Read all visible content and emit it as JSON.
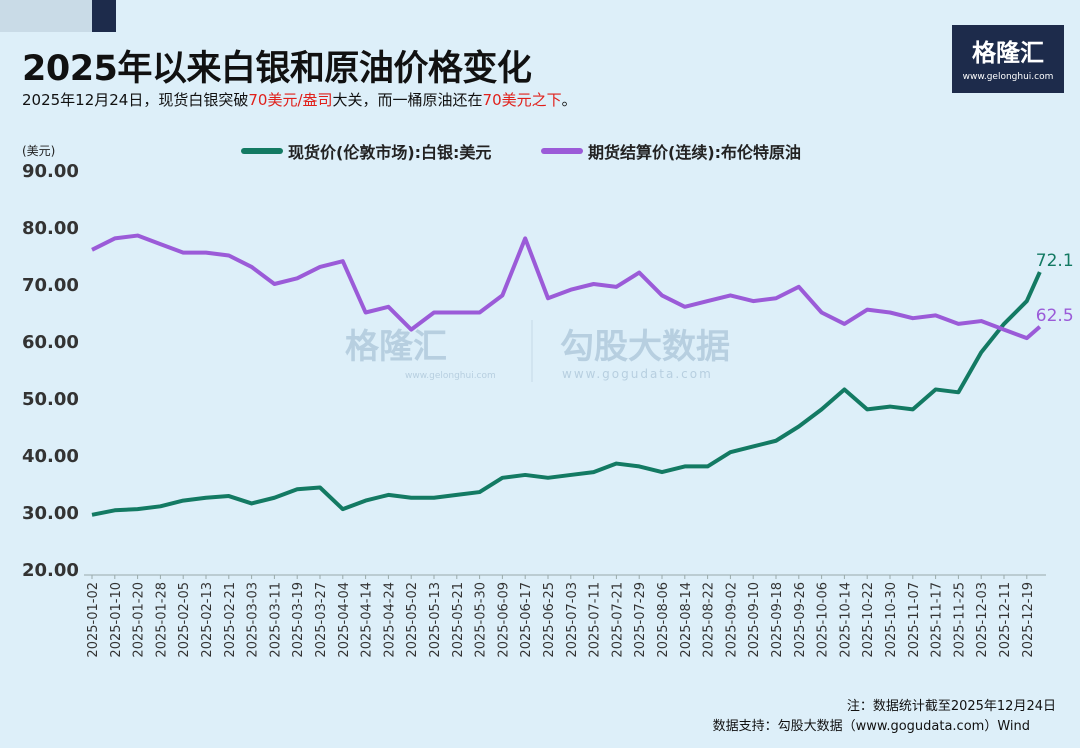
{
  "header": {
    "title": "2025年以来白银和原油价格变化",
    "subtitle_parts": [
      "2025年12月24日，现货白银突破",
      "70美元/盎司",
      "大关，而一桶原油还在",
      "70美元之下",
      "。"
    ]
  },
  "logo": {
    "name": "格隆汇",
    "url_text": "www.gelonghui.com"
  },
  "watermark": {
    "left": "格隆汇",
    "left_url": "www.gelonghui.com",
    "right": "勾股大数据",
    "right_url": "www.gogudata.com"
  },
  "footer": {
    "note": "注：数据统计截至2025年12月24日",
    "source": "数据支持：勾股大数据（www.gogudata.com）Wind"
  },
  "colors": {
    "silver": "#137a63",
    "oil": "#9b5bd8",
    "background": "#ddeff9",
    "highlight": "#e0201b"
  },
  "chart_data": {
    "type": "line",
    "ylabel": "(美元)",
    "ylim": [
      20,
      90
    ],
    "yticks": [
      "20.00",
      "30.00",
      "40.00",
      "50.00",
      "60.00",
      "70.00",
      "80.00",
      "90.00"
    ],
    "grid": false,
    "legend_placement": "top",
    "x": [
      "2025-01-02",
      "2025-01-10",
      "2025-01-20",
      "2025-01-28",
      "2025-02-05",
      "2025-02-13",
      "2025-02-21",
      "2025-03-03",
      "2025-03-11",
      "2025-03-19",
      "2025-03-27",
      "2025-04-04",
      "2025-04-14",
      "2025-04-24",
      "2025-05-02",
      "2025-05-13",
      "2025-05-21",
      "2025-05-30",
      "2025-06-09",
      "2025-06-17",
      "2025-06-25",
      "2025-07-03",
      "2025-07-11",
      "2025-07-21",
      "2025-07-29",
      "2025-08-06",
      "2025-08-14",
      "2025-08-22",
      "2025-09-02",
      "2025-09-10",
      "2025-09-18",
      "2025-09-26",
      "2025-10-06",
      "2025-10-14",
      "2025-10-22",
      "2025-10-30",
      "2025-11-07",
      "2025-11-17",
      "2025-11-25",
      "2025-12-03",
      "2025-12-11",
      "2025-12-19",
      "2025-12-24"
    ],
    "xtick_labels": [
      "2025-01-02",
      "2025-01-10",
      "2025-01-20",
      "2025-01-28",
      "2025-02-05",
      "2025-02-13",
      "2025-02-21",
      "2025-03-03",
      "2025-03-11",
      "2025-03-19",
      "2025-03-27",
      "2025-04-04",
      "2025-04-14",
      "2025-04-24",
      "2025-05-02",
      "2025-05-13",
      "2025-05-21",
      "2025-05-30",
      "2025-06-09",
      "2025-06-17",
      "2025-06-25",
      "2025-07-03",
      "2025-07-11",
      "2025-07-21",
      "2025-07-29",
      "2025-08-06",
      "2025-08-14",
      "2025-08-22",
      "2025-09-02",
      "2025-09-10",
      "2025-09-18",
      "2025-09-26",
      "2025-10-06",
      "2025-10-14",
      "2025-10-22",
      "2025-10-30",
      "2025-11-07",
      "2025-11-17",
      "2025-11-25",
      "2025-12-03",
      "2025-12-11",
      "2025-12-19"
    ],
    "series": [
      {
        "name": "现货价(伦敦市场):白银:美元",
        "color": "#137a63",
        "end_label": "72.1",
        "values": [
          29.5,
          30.3,
          30.5,
          31,
          32,
          32.5,
          32.8,
          31.5,
          32.5,
          34,
          34.3,
          30.5,
          32,
          33,
          32.5,
          32.5,
          33,
          33.5,
          36,
          36.5,
          36,
          36.5,
          37,
          38.5,
          38,
          37,
          38,
          38,
          40.5,
          41.5,
          42.5,
          45,
          48,
          51.5,
          48,
          48.5,
          48,
          51.5,
          51,
          58,
          63,
          67,
          72.1
        ]
      },
      {
        "name": "期货结算价(连续):布伦特原油",
        "color": "#9b5bd8",
        "end_label": "62.5",
        "values": [
          76,
          78,
          78.5,
          77,
          75.5,
          75.5,
          75,
          73,
          70,
          71,
          73,
          74,
          65,
          66,
          62,
          65,
          65,
          65,
          68,
          78,
          67.5,
          69,
          70,
          69.5,
          72,
          68,
          66,
          67,
          68,
          67,
          67.5,
          69.5,
          65,
          63,
          65.5,
          65,
          64,
          64.5,
          63,
          63.5,
          62,
          60.5,
          62.5
        ]
      }
    ]
  }
}
